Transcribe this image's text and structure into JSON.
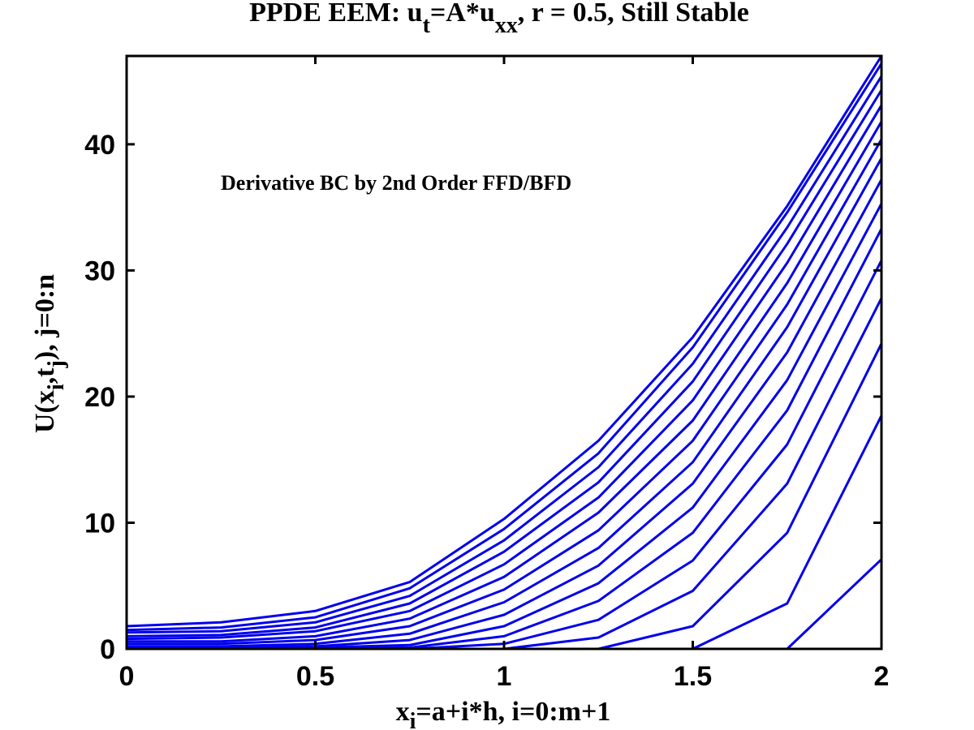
{
  "chart_data": {
    "type": "line",
    "title": {
      "prefix": "PPDE EEM: u",
      "sub1": "t",
      "mid": "=A*u",
      "sub2": "xx",
      "suffix": ", r = 0.5, Still Stable"
    },
    "annotation": "Derivative BC by 2nd Order FFD/BFD",
    "xlabel": {
      "base": "x",
      "sub": "i",
      "rest": "=a+i*h,  i=0:m+1"
    },
    "ylabel": {
      "p1": "U(x",
      "sub1": "i",
      "p2": ",t",
      "sub2": "j",
      "p3": "),  j=0:n"
    },
    "xlim": [
      0,
      2
    ],
    "ylim": [
      0,
      47
    ],
    "xticks": [
      0,
      0.5,
      1,
      1.5,
      2
    ],
    "xtick_labels": [
      "0",
      "0.5",
      "1",
      "1.5",
      "2"
    ],
    "yticks": [
      0,
      10,
      20,
      30,
      40
    ],
    "ytick_labels": [
      "0",
      "10",
      "20",
      "30",
      "40"
    ],
    "grid": false,
    "line_color": "#0000ee",
    "x": [
      0,
      0.25,
      0.5,
      0.75,
      1,
      1.25,
      1.5,
      1.75,
      2
    ],
    "series": [
      {
        "values": [
          0,
          0,
          0,
          0,
          0,
          0,
          0,
          0,
          7.1
        ]
      },
      {
        "values": [
          0,
          0,
          0,
          0,
          0,
          0,
          0,
          3.6,
          18.5
        ]
      },
      {
        "values": [
          0,
          0,
          0,
          0,
          0,
          0,
          1.8,
          9.2,
          24.2
        ]
      },
      {
        "values": [
          0,
          0,
          0,
          0,
          0,
          0.9,
          4.6,
          13.1,
          27.8
        ]
      },
      {
        "values": [
          0,
          0,
          0,
          0,
          0.4,
          2.3,
          7.0,
          16.2,
          30.8
        ]
      },
      {
        "values": [
          0,
          0,
          0,
          0.1,
          1.0,
          3.8,
          9.2,
          18.9,
          33.3
        ]
      },
      {
        "values": [
          0,
          0,
          0.1,
          0.3,
          1.8,
          5.2,
          11.2,
          21.3,
          35.3
        ]
      },
      {
        "values": [
          0.1,
          0.1,
          0.2,
          0.7,
          2.7,
          6.6,
          13.1,
          23.5,
          37.2
        ]
      },
      {
        "values": [
          0.2,
          0.2,
          0.4,
          1.2,
          3.7,
          8.0,
          14.8,
          25.5,
          38.9
        ]
      },
      {
        "values": [
          0.4,
          0.4,
          0.7,
          1.8,
          4.7,
          9.4,
          16.5,
          27.3,
          40.4
        ]
      },
      {
        "values": [
          0.6,
          0.6,
          1.0,
          2.4,
          5.7,
          10.8,
          18.1,
          29.0,
          41.8
        ]
      },
      {
        "values": [
          0.8,
          0.9,
          1.4,
          3.0,
          6.7,
          12.0,
          19.7,
          30.6,
          43.1
        ]
      },
      {
        "values": [
          1.0,
          1.1,
          1.7,
          3.6,
          7.7,
          13.2,
          21.2,
          32.1,
          44.3
        ]
      },
      {
        "values": [
          1.3,
          1.4,
          2.1,
          4.2,
          8.6,
          14.4,
          22.6,
          33.4,
          45.4
        ]
      },
      {
        "values": [
          1.5,
          1.7,
          2.5,
          4.8,
          9.5,
          15.5,
          23.9,
          34.6,
          46.4
        ]
      },
      {
        "values": [
          1.8,
          2.1,
          3.0,
          5.3,
          10.3,
          16.5,
          24.7,
          35.1,
          47.0
        ]
      }
    ]
  }
}
